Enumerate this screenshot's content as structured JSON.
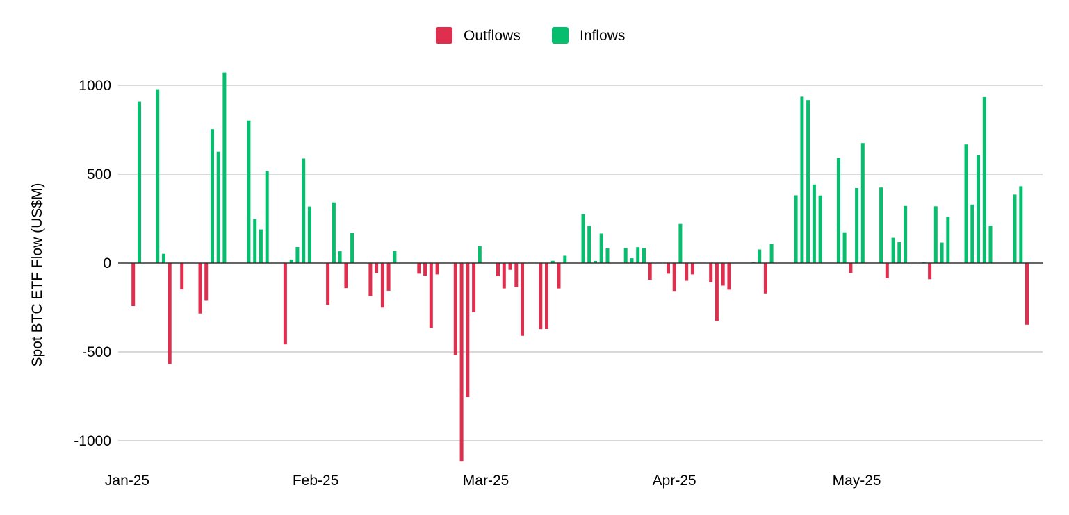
{
  "chart_data": {
    "type": "bar",
    "title": "",
    "xlabel": "",
    "ylabel": "Spot BTC ETF Flow (US$M)",
    "ylim": [
      -1150,
      1150
    ],
    "y_ticks": [
      1000,
      500,
      0,
      -500,
      -1000
    ],
    "x_range": [
      "2025-01-01",
      "2025-05-31"
    ],
    "x_ticks": [
      {
        "date": "2025-01-01",
        "label": "Jan-25"
      },
      {
        "date": "2025-02-01",
        "label": "Feb-25"
      },
      {
        "date": "2025-03-01",
        "label": "Mar-25"
      },
      {
        "date": "2025-04-01",
        "label": "Apr-25"
      },
      {
        "date": "2025-05-01",
        "label": "May-25"
      }
    ],
    "grid": true,
    "legend_position": "top-center",
    "series": [
      {
        "name": "Outflows",
        "color": "#de2f4f"
      },
      {
        "name": "Inflows",
        "color": "#07be6e"
      }
    ],
    "points": [
      {
        "date": "2025-01-02",
        "value": -242
      },
      {
        "date": "2025-01-03",
        "value": 908
      },
      {
        "date": "2025-01-06",
        "value": 978
      },
      {
        "date": "2025-01-07",
        "value": 52
      },
      {
        "date": "2025-01-08",
        "value": -568
      },
      {
        "date": "2025-01-10",
        "value": -149
      },
      {
        "date": "2025-01-13",
        "value": -284
      },
      {
        "date": "2025-01-14",
        "value": -209
      },
      {
        "date": "2025-01-15",
        "value": 753
      },
      {
        "date": "2025-01-16",
        "value": 626
      },
      {
        "date": "2025-01-17",
        "value": 1072
      },
      {
        "date": "2025-01-21",
        "value": 802
      },
      {
        "date": "2025-01-22",
        "value": 248
      },
      {
        "date": "2025-01-23",
        "value": 189
      },
      {
        "date": "2025-01-24",
        "value": 518
      },
      {
        "date": "2025-01-27",
        "value": -458
      },
      {
        "date": "2025-01-28",
        "value": 20
      },
      {
        "date": "2025-01-29",
        "value": 90
      },
      {
        "date": "2025-01-30",
        "value": 588
      },
      {
        "date": "2025-01-31",
        "value": 318
      },
      {
        "date": "2025-02-03",
        "value": -235
      },
      {
        "date": "2025-02-04",
        "value": 341
      },
      {
        "date": "2025-02-05",
        "value": 66
      },
      {
        "date": "2025-02-06",
        "value": -141
      },
      {
        "date": "2025-02-07",
        "value": 170
      },
      {
        "date": "2025-02-10",
        "value": -186
      },
      {
        "date": "2025-02-11",
        "value": -56
      },
      {
        "date": "2025-02-12",
        "value": -251
      },
      {
        "date": "2025-02-13",
        "value": -156
      },
      {
        "date": "2025-02-14",
        "value": 67
      },
      {
        "date": "2025-02-18",
        "value": -60
      },
      {
        "date": "2025-02-19",
        "value": -71
      },
      {
        "date": "2025-02-20",
        "value": -365
      },
      {
        "date": "2025-02-21",
        "value": -64
      },
      {
        "date": "2025-02-24",
        "value": -517
      },
      {
        "date": "2025-02-25",
        "value": -1114
      },
      {
        "date": "2025-02-26",
        "value": -754
      },
      {
        "date": "2025-02-27",
        "value": -276
      },
      {
        "date": "2025-02-28",
        "value": 95
      },
      {
        "date": "2025-03-03",
        "value": -74
      },
      {
        "date": "2025-03-04",
        "value": -143
      },
      {
        "date": "2025-03-05",
        "value": -38
      },
      {
        "date": "2025-03-06",
        "value": -135
      },
      {
        "date": "2025-03-07",
        "value": -409
      },
      {
        "date": "2025-03-10",
        "value": -372
      },
      {
        "date": "2025-03-11",
        "value": -371
      },
      {
        "date": "2025-03-12",
        "value": 13
      },
      {
        "date": "2025-03-13",
        "value": -143
      },
      {
        "date": "2025-03-14",
        "value": 41
      },
      {
        "date": "2025-03-17",
        "value": 275
      },
      {
        "date": "2025-03-18",
        "value": 209
      },
      {
        "date": "2025-03-19",
        "value": 12
      },
      {
        "date": "2025-03-20",
        "value": 166
      },
      {
        "date": "2025-03-21",
        "value": 83
      },
      {
        "date": "2025-03-24",
        "value": 84
      },
      {
        "date": "2025-03-25",
        "value": 27
      },
      {
        "date": "2025-03-26",
        "value": 89
      },
      {
        "date": "2025-03-27",
        "value": 84
      },
      {
        "date": "2025-03-28",
        "value": -94
      },
      {
        "date": "2025-03-31",
        "value": -60
      },
      {
        "date": "2025-04-01",
        "value": -157
      },
      {
        "date": "2025-04-02",
        "value": 220
      },
      {
        "date": "2025-04-03",
        "value": -100
      },
      {
        "date": "2025-04-04",
        "value": -64
      },
      {
        "date": "2025-04-07",
        "value": -109
      },
      {
        "date": "2025-04-08",
        "value": -326
      },
      {
        "date": "2025-04-09",
        "value": -127
      },
      {
        "date": "2025-04-10",
        "value": -150
      },
      {
        "date": "2025-04-14",
        "value": 1
      },
      {
        "date": "2025-04-15",
        "value": 76
      },
      {
        "date": "2025-04-16",
        "value": -171
      },
      {
        "date": "2025-04-17",
        "value": 107
      },
      {
        "date": "2025-04-21",
        "value": 381
      },
      {
        "date": "2025-04-22",
        "value": 936
      },
      {
        "date": "2025-04-23",
        "value": 917
      },
      {
        "date": "2025-04-24",
        "value": 442
      },
      {
        "date": "2025-04-25",
        "value": 380
      },
      {
        "date": "2025-04-28",
        "value": 591
      },
      {
        "date": "2025-04-29",
        "value": 173
      },
      {
        "date": "2025-04-30",
        "value": -56
      },
      {
        "date": "2025-05-01",
        "value": 422
      },
      {
        "date": "2025-05-02",
        "value": 675
      },
      {
        "date": "2025-05-05",
        "value": 425
      },
      {
        "date": "2025-05-06",
        "value": -86
      },
      {
        "date": "2025-05-07",
        "value": 142
      },
      {
        "date": "2025-05-08",
        "value": 118
      },
      {
        "date": "2025-05-09",
        "value": 321
      },
      {
        "date": "2025-05-12",
        "value": 1
      },
      {
        "date": "2025-05-13",
        "value": -91
      },
      {
        "date": "2025-05-14",
        "value": 319
      },
      {
        "date": "2025-05-15",
        "value": 115
      },
      {
        "date": "2025-05-16",
        "value": 260
      },
      {
        "date": "2025-05-19",
        "value": 667
      },
      {
        "date": "2025-05-20",
        "value": 329
      },
      {
        "date": "2025-05-21",
        "value": 607
      },
      {
        "date": "2025-05-22",
        "value": 934
      },
      {
        "date": "2025-05-23",
        "value": 211
      },
      {
        "date": "2025-05-27",
        "value": 385
      },
      {
        "date": "2025-05-28",
        "value": 432
      },
      {
        "date": "2025-05-29",
        "value": -347
      }
    ]
  }
}
